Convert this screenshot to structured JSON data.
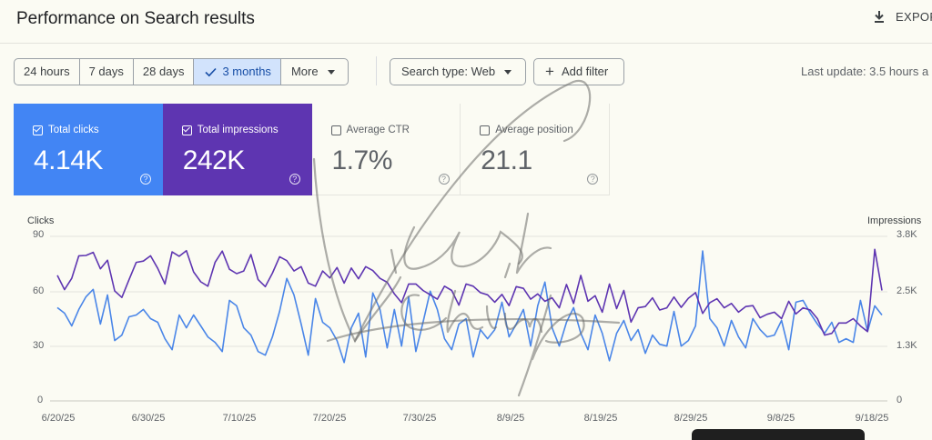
{
  "header": {
    "title": "Performance on Search results",
    "export_label": "EXPOR"
  },
  "toolbar": {
    "date_ranges": [
      {
        "label": "24 hours",
        "active": false
      },
      {
        "label": "7 days",
        "active": false
      },
      {
        "label": "28 days",
        "active": false
      },
      {
        "label": "3 months",
        "active": true
      },
      {
        "label": "More",
        "active": false
      }
    ],
    "search_type": "Search type: Web",
    "add_filter": "Add filter",
    "last_update": "Last update: 3.5 hours a"
  },
  "metrics": [
    {
      "label": "Total clicks",
      "value": "4.14K",
      "checked": true,
      "color": "#4285f4"
    },
    {
      "label": "Total impressions",
      "value": "242K",
      "checked": true,
      "color": "#5e35b1"
    },
    {
      "label": "Average CTR",
      "value": "1.7%",
      "checked": false
    },
    {
      "label": "Average position",
      "value": "21.1",
      "checked": false
    }
  ],
  "chart_data": {
    "type": "line",
    "left_axis": {
      "title": "Clicks",
      "ticks": [
        "90",
        "60",
        "30",
        "0"
      ],
      "range": [
        0,
        90
      ]
    },
    "right_axis": {
      "title": "Impressions",
      "ticks": [
        "3.8K",
        "2.5K",
        "1.3K",
        "0"
      ],
      "range": [
        0,
        3800
      ]
    },
    "x_ticks": [
      "6/20/25",
      "6/30/25",
      "7/10/25",
      "7/20/25",
      "7/30/25",
      "8/9/25",
      "8/19/25",
      "8/29/25",
      "9/8/25",
      "9/18/25"
    ],
    "series": [
      {
        "name": "Clicks",
        "axis": "left",
        "color": "#4a86e8",
        "values": [
          51,
          48,
          41,
          50,
          57,
          61,
          42,
          58,
          33,
          36,
          46,
          47,
          50,
          45,
          43,
          34,
          28,
          47,
          40,
          47,
          41,
          35,
          32,
          27,
          55,
          52,
          40,
          36,
          27,
          25,
          35,
          49,
          67,
          58,
          42,
          25,
          56,
          43,
          40,
          33,
          21,
          40,
          48,
          24,
          59,
          50,
          29,
          50,
          30,
          57,
          27,
          43,
          60,
          50,
          34,
          28,
          42,
          45,
          24,
          39,
          34,
          39,
          54,
          35,
          42,
          50,
          30,
          52,
          65,
          40,
          30,
          43,
          51,
          37,
          28,
          47,
          37,
          22,
          37,
          44,
          33,
          39,
          26,
          36,
          31,
          30,
          49,
          30,
          33,
          41,
          82,
          45,
          40,
          30,
          44,
          35,
          29,
          45,
          39,
          35,
          36,
          44,
          28,
          54,
          55,
          48,
          42,
          37,
          43,
          32,
          34,
          32,
          55,
          38,
          52,
          47
        ],
        "dates": [
          "6/20/25",
          "9/21/25"
        ]
      },
      {
        "name": "Impressions",
        "axis": "right",
        "color": "#5e35b1",
        "values": [
          2900,
          2570,
          2830,
          3350,
          3360,
          3430,
          3050,
          3250,
          2540,
          2390,
          2800,
          3200,
          3230,
          3350,
          3060,
          2700,
          3440,
          3340,
          3470,
          2980,
          2750,
          2650,
          3200,
          3460,
          3040,
          2940,
          3000,
          3380,
          2800,
          2640,
          2950,
          3330,
          3240,
          3000,
          3100,
          2720,
          2650,
          3000,
          2840,
          3080,
          2720,
          3070,
          2820,
          3100,
          3010,
          2830,
          2740,
          2470,
          2270,
          2700,
          2700,
          2550,
          2450,
          2350,
          2650,
          2550,
          2210,
          2700,
          2650,
          2500,
          2450,
          2280,
          2460,
          2200,
          2640,
          2600,
          2350,
          2470,
          2300,
          2380,
          2150,
          2690,
          2250,
          2900,
          2300,
          2430,
          2050,
          2700,
          2130,
          2550,
          1820,
          2150,
          2180,
          2380,
          2100,
          2150,
          2400,
          2160,
          2370,
          2500,
          2020,
          2270,
          2360,
          2150,
          2250,
          2050,
          2180,
          2200,
          1920,
          2000,
          2050,
          1900,
          2300,
          2010,
          2150,
          2100,
          1900,
          1520,
          1560,
          1800,
          1800,
          1900,
          1730,
          1600,
          3500,
          2550
        ]
      }
    ]
  },
  "watermark_text": "Vivek Chhimpa"
}
